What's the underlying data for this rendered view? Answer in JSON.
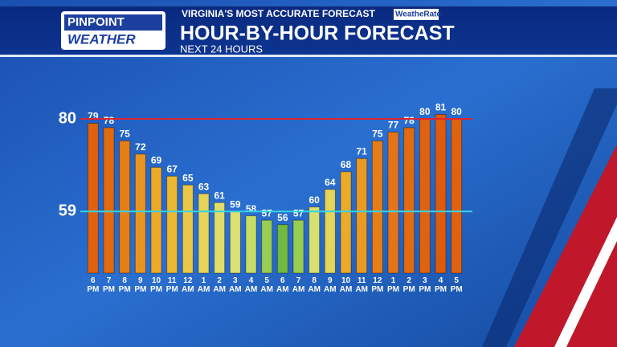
{
  "header": {
    "logo_line1": "PINPOINT",
    "logo_line2": "WEATHER",
    "tagline": "VIRGINIA'S MOST ACCURATE FORECAST",
    "badge": "WeatheRate"
  },
  "chart_data": {
    "type": "bar",
    "title": "HOUR-BY-HOUR FORECAST",
    "subtitle": "NEXT 24 HOURS",
    "categories": [
      "6 PM",
      "7 PM",
      "8 PM",
      "9 PM",
      "10 PM",
      "11 PM",
      "12 AM",
      "1 AM",
      "2 AM",
      "3 AM",
      "4 AM",
      "5 AM",
      "6 AM",
      "7 AM",
      "8 AM",
      "9 AM",
      "10 AM",
      "11 AM",
      "12 PM",
      "1 PM",
      "2 PM",
      "3 PM",
      "4 PM",
      "5 PM"
    ],
    "values": [
      79,
      78,
      75,
      72,
      69,
      67,
      65,
      63,
      61,
      59,
      58,
      57,
      56,
      57,
      60,
      64,
      68,
      71,
      75,
      77,
      78,
      80,
      81,
      80
    ],
    "colors": [
      "#e0620e",
      "#e26a10",
      "#e67e16",
      "#ea9420",
      "#ecaa28",
      "#ecb832",
      "#eac846",
      "#e6d458",
      "#e2dc68",
      "#dce070",
      "#c8dc66",
      "#98cc52",
      "#70b840",
      "#98cc52",
      "#d8e070",
      "#e6d458",
      "#ecaa28",
      "#ea9a22",
      "#e67e16",
      "#e4741a",
      "#e26a10",
      "#e0620e",
      "#de5a0c",
      "#e0620e"
    ],
    "ylim": [
      45,
      82
    ],
    "reference_lines": [
      {
        "value": 80,
        "color": "#e02430"
      },
      {
        "value": 59,
        "color": "#34d4e4"
      }
    ]
  }
}
